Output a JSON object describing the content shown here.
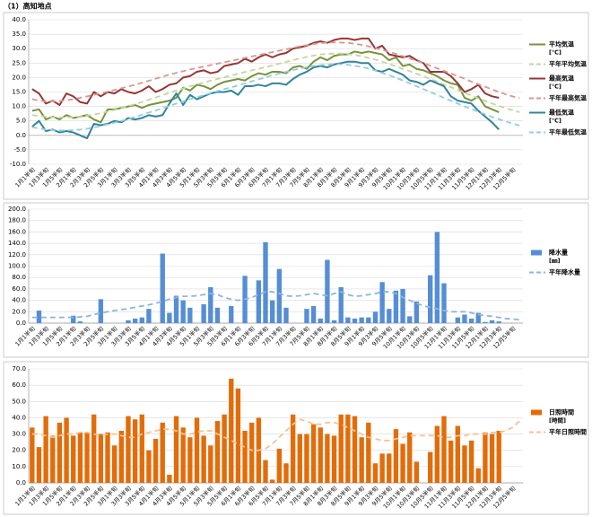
{
  "title": "（1）高知地点",
  "chart_data": [
    {
      "type": "line",
      "ylim": [
        -10,
        40
      ],
      "yticks": [
        {
          "value": -10,
          "label": "-10.0"
        },
        {
          "value": -5,
          "label": "-5.0"
        },
        {
          "value": 0,
          "label": "0.0"
        },
        {
          "value": 5,
          "label": "5.0"
        },
        {
          "value": 10,
          "label": "10.0"
        },
        {
          "value": 15,
          "label": "15.0"
        },
        {
          "value": 20,
          "label": "20.0"
        },
        {
          "value": 25,
          "label": "25.0"
        },
        {
          "value": 30,
          "label": "30.0"
        },
        {
          "value": 35,
          "label": "35.0"
        },
        {
          "value": 40,
          "label": "40.0"
        }
      ],
      "grid": true,
      "categories": [
        "1月1半旬",
        null,
        "1月3半旬",
        null,
        "1月5半旬",
        null,
        "2月1半旬",
        null,
        "2月3半旬",
        null,
        "2月5半旬",
        null,
        "3月1半旬",
        null,
        "3月3半旬",
        null,
        "3月5半旬",
        null,
        "4月1半旬",
        null,
        "4月3半旬",
        null,
        "4月5半旬",
        null,
        "5月1半旬",
        null,
        "5月3半旬",
        null,
        "5月5半旬",
        null,
        "6月1半旬",
        null,
        "6月3半旬",
        null,
        "6月5半旬",
        null,
        "7月1半旬",
        null,
        "7月3半旬",
        null,
        "7月5半旬",
        null,
        "8月1半旬",
        null,
        "8月3半旬",
        null,
        "8月5半旬",
        null,
        "9月1半旬",
        null,
        "9月3半旬",
        null,
        "9月5半旬",
        null,
        "10月1半旬",
        null,
        "10月3半旬",
        null,
        "10月5半旬",
        null,
        "11月1半旬",
        null,
        "11月3半旬",
        null,
        "11月5半旬",
        null,
        "12月1半旬",
        null,
        "12月3半旬",
        null,
        "12月5半旬",
        null
      ],
      "series": [
        {
          "name": "平均気温",
          "unit": "[℃]",
          "type": "line",
          "dashed": false,
          "color": "#77933c",
          "values": [
            8.5,
            9,
            5.5,
            6.5,
            5.5,
            7,
            6,
            6.5,
            7,
            5.5,
            4.5,
            9,
            9,
            9.5,
            10,
            10.5,
            9.5,
            10.5,
            11,
            11.5,
            12,
            13,
            16.5,
            15.5,
            17.5,
            17,
            16,
            17.5,
            18.5,
            19,
            19.5,
            19,
            20.5,
            21.5,
            21,
            22,
            22,
            21.5,
            23.5,
            24,
            23,
            25.5,
            27,
            26,
            27.5,
            28,
            28,
            29,
            28.5,
            29,
            28.5,
            28,
            26,
            27,
            24,
            24.5,
            23,
            22.5,
            21.5,
            20.5,
            19,
            18,
            17.5,
            13,
            12,
            13.5,
            10,
            9,
            8,
            null,
            null,
            null
          ]
        },
        {
          "name": "平年平均気温",
          "type": "line",
          "dashed": true,
          "color": "#c3d69b",
          "values": [
            7.0,
            6.7,
            6.5,
            6.3,
            6.2,
            6.2,
            6.3,
            6.5,
            6.8,
            7.2,
            7.7,
            8.2,
            8.8,
            9.4,
            10.1,
            10.8,
            11.5,
            12.3,
            13.1,
            13.9,
            14.7,
            15.5,
            16.2,
            17.0,
            17.6,
            18.3,
            18.9,
            19.5,
            20.1,
            20.7,
            21.3,
            21.9,
            22.5,
            23.0,
            23.6,
            24.2,
            24.8,
            25.4,
            26.0,
            26.6,
            27.1,
            27.6,
            28.0,
            28.2,
            28.3,
            28.3,
            28.1,
            27.8,
            27.4,
            26.8,
            26.2,
            25.5,
            24.7,
            23.9,
            23.0,
            22.2,
            21.3,
            20.4,
            19.5,
            18.6,
            17.6,
            16.7,
            15.7,
            14.7,
            13.8,
            12.8,
            11.9,
            11.0,
            10.2,
            9.4,
            8.7,
            8.0
          ]
        },
        {
          "name": "最高気温",
          "unit": "[℃]",
          "type": "line",
          "dashed": false,
          "color": "#953735",
          "values": [
            16,
            14.5,
            11,
            12,
            10.5,
            14.5,
            13.5,
            11.5,
            11,
            15,
            13.5,
            15,
            14.5,
            16,
            15,
            14.5,
            15.5,
            17,
            15,
            16,
            17.5,
            18,
            20,
            20.5,
            22,
            22.5,
            21.5,
            22,
            24,
            24.5,
            25,
            26.5,
            25.5,
            27,
            28,
            27,
            28,
            28.5,
            30,
            30.5,
            31,
            32,
            32.5,
            32,
            33,
            33.5,
            33.5,
            33,
            33.5,
            33.5,
            30,
            31,
            28,
            27.5,
            27,
            27.5,
            26,
            25,
            22,
            22,
            22,
            20.5,
            18,
            15,
            16,
            17.5,
            14.5,
            13.5,
            13,
            null,
            null,
            null
          ]
        },
        {
          "name": "平年最高気温",
          "type": "line",
          "dashed": true,
          "color": "#d99694",
          "values": [
            12.5,
            12,
            11.8,
            11.8,
            11.9,
            12.2,
            12.5,
            13,
            13.5,
            14,
            14.5,
            15.1,
            15.7,
            16.3,
            16.9,
            17.5,
            18.2,
            18.9,
            19.6,
            20.3,
            21,
            21.6,
            22.2,
            22.8,
            23.3,
            23.8,
            24.3,
            24.8,
            25.3,
            25.8,
            26.3,
            26.8,
            27.3,
            27.8,
            28.3,
            28.8,
            29.3,
            29.8,
            30.3,
            30.8,
            31.2,
            31.6,
            31.9,
            32.1,
            32.2,
            32.1,
            32,
            31.7,
            31.3,
            30.8,
            30.2,
            29.6,
            28.9,
            28.2,
            27.4,
            26.6,
            25.8,
            25,
            24.1,
            23.2,
            22.3,
            21.4,
            20.5,
            19.6,
            18.6,
            17.7,
            16.8,
            15.9,
            15,
            14.2,
            13.5,
            12.8
          ]
        },
        {
          "name": "最低気温",
          "unit": "[℃]",
          "type": "line",
          "dashed": false,
          "color": "#31849b",
          "values": [
            3,
            5,
            1.5,
            2,
            1,
            1.5,
            1,
            0,
            -1,
            4,
            3.5,
            4,
            5,
            4.5,
            6,
            5.5,
            6,
            7,
            6.5,
            7,
            11,
            14.5,
            10.5,
            14,
            12.5,
            13.5,
            14.5,
            15,
            15,
            15.5,
            14,
            17,
            17,
            17.5,
            17,
            18,
            18,
            17.5,
            19.5,
            21,
            22,
            23.5,
            24,
            23.5,
            24.5,
            25,
            25.5,
            25.5,
            25,
            25,
            22.5,
            22,
            23,
            22,
            21,
            19,
            18.5,
            17.5,
            19,
            18,
            17,
            13.5,
            12,
            11.5,
            11,
            8.5,
            6.5,
            4.5,
            2,
            null,
            null,
            null
          ]
        },
        {
          "name": "平年最低気温",
          "type": "line",
          "dashed": true,
          "color": "#93cddd",
          "values": [
            2.8,
            2.4,
            2,
            1.8,
            1.7,
            1.7,
            1.8,
            2,
            2.3,
            2.7,
            3.2,
            3.8,
            4.4,
            5,
            5.7,
            6.4,
            7.1,
            7.9,
            8.6,
            9.4,
            10.2,
            11,
            11.7,
            12.5,
            13.2,
            13.9,
            14.6,
            15.3,
            16,
            16.6,
            17.3,
            18,
            18.7,
            19.4,
            20.1,
            20.8,
            21.4,
            22,
            22.6,
            23.1,
            23.6,
            24,
            24.3,
            24.5,
            24.6,
            24.6,
            24.4,
            24.1,
            23.7,
            23.1,
            22.4,
            21.6,
            20.8,
            19.9,
            19,
            18,
            17,
            16,
            15,
            14,
            13,
            12,
            11,
            10,
            9.1,
            8.2,
            7.3,
            6.4,
            5.6,
            4.8,
            4.1,
            3.4
          ]
        }
      ]
    },
    {
      "type": "bar",
      "ylim": [
        0,
        200
      ],
      "yticks": [
        {
          "value": 0,
          "label": "0.0"
        },
        {
          "value": 20,
          "label": "20.0"
        },
        {
          "value": 40,
          "label": "40.0"
        },
        {
          "value": 60,
          "label": "60.0"
        },
        {
          "value": 80,
          "label": "80.0"
        },
        {
          "value": 100,
          "label": "100.0"
        },
        {
          "value": 120,
          "label": "120.0"
        },
        {
          "value": 140,
          "label": "140.0"
        },
        {
          "value": 160,
          "label": "160.0"
        },
        {
          "value": 180,
          "label": "180.0"
        },
        {
          "value": 200,
          "label": "200.0"
        }
      ],
      "grid": true,
      "categories": [
        "1月1半旬",
        null,
        "1月3半旬",
        null,
        "1月5半旬",
        null,
        "2月1半旬",
        null,
        "2月3半旬",
        null,
        "2月5半旬",
        null,
        "3月1半旬",
        null,
        "3月3半旬",
        null,
        "3月5半旬",
        null,
        "4月1半旬",
        null,
        "4月3半旬",
        null,
        "4月5半旬",
        null,
        "5月1半旬",
        null,
        "5月3半旬",
        null,
        "5月5半旬",
        null,
        "6月1半旬",
        null,
        "6月3半旬",
        null,
        "6月5半旬",
        null,
        "7月1半旬",
        null,
        "7月3半旬",
        null,
        "7月5半旬",
        null,
        "8月1半旬",
        null,
        "8月3半旬",
        null,
        "8月5半旬",
        null,
        "9月1半旬",
        null,
        "9月3半旬",
        null,
        "9月5半旬",
        null,
        "10月1半旬",
        null,
        "10月3半旬",
        null,
        "10月5半旬",
        null,
        "11月1半旬",
        null,
        "11月3半旬",
        null,
        "11月5半旬",
        null,
        "12月1半旬",
        null,
        "12月3半旬",
        null,
        "12月5半旬",
        null
      ],
      "series": [
        {
          "name": "降水量",
          "unit": "[㎜]",
          "type": "bar",
          "color": "#558ed5",
          "values": [
            0,
            22,
            0,
            0,
            0,
            0,
            13,
            3,
            0,
            0,
            42,
            0,
            0,
            0,
            5,
            8,
            10,
            25,
            0,
            122,
            18,
            48,
            40,
            27,
            0,
            33,
            63,
            27,
            0,
            30,
            0,
            83,
            0,
            75,
            142,
            40,
            95,
            27,
            0,
            0,
            25,
            30,
            8,
            111,
            5,
            63,
            10,
            8,
            10,
            10,
            20,
            72,
            25,
            57,
            60,
            12,
            38,
            0,
            84,
            160,
            70,
            0,
            10,
            15,
            8,
            18,
            2,
            5,
            3,
            null,
            null,
            null
          ]
        },
        {
          "name": "平年降水量",
          "type": "line",
          "dashed": true,
          "color": "#8db4e2",
          "values": [
            10,
            10,
            10,
            10,
            10,
            10,
            10,
            11,
            12,
            15,
            18,
            20,
            22,
            24,
            25,
            28,
            30,
            32,
            35,
            38,
            42,
            45,
            47,
            47,
            48,
            50,
            52,
            50,
            45,
            42,
            40,
            42,
            45,
            50,
            55,
            55,
            52,
            48,
            47,
            48,
            50,
            52,
            50,
            48,
            52,
            55,
            50,
            47,
            48,
            50,
            52,
            55,
            55,
            52,
            45,
            40,
            35,
            30,
            28,
            25,
            22,
            20,
            20,
            20,
            18,
            15,
            13,
            12,
            10,
            8,
            7,
            6
          ]
        }
      ]
    },
    {
      "type": "bar",
      "ylim": [
        0,
        70
      ],
      "yticks": [
        {
          "value": 0,
          "label": "0.0"
        },
        {
          "value": 10,
          "label": "10.0"
        },
        {
          "value": 20,
          "label": "20.0"
        },
        {
          "value": 30,
          "label": "30.0"
        },
        {
          "value": 40,
          "label": "40.0"
        },
        {
          "value": 50,
          "label": "50.0"
        },
        {
          "value": 60,
          "label": "60.0"
        },
        {
          "value": 70,
          "label": "70.0"
        }
      ],
      "grid": true,
      "categories": [
        "1月1半旬",
        null,
        "1月3半旬",
        null,
        "1月5半旬",
        null,
        "2月1半旬",
        null,
        "2月3半旬",
        null,
        "2月5半旬",
        null,
        "3月1半旬",
        null,
        "3月3半旬",
        null,
        "3月5半旬",
        null,
        "4月1半旬",
        null,
        "4月3半旬",
        null,
        "4月5半旬",
        null,
        "5月1半旬",
        null,
        "5月3半旬",
        null,
        "5月5半旬",
        null,
        "6月1半旬",
        null,
        "6月3半旬",
        null,
        "6月5半旬",
        null,
        "7月1半旬",
        null,
        "7月3半旬",
        null,
        "7月5半旬",
        null,
        "8月1半旬",
        null,
        "8月3半旬",
        null,
        "8月5半旬",
        null,
        "9月1半旬",
        null,
        "9月3半旬",
        null,
        "9月5半旬",
        null,
        "10月1半旬",
        null,
        "10月3半旬",
        null,
        "10月5半旬",
        null,
        "11月1半旬",
        null,
        "11月3半旬",
        null,
        "11月5半旬",
        null,
        "12月1半旬",
        null,
        "12月3半旬",
        null,
        "12月5半旬",
        null
      ],
      "series": [
        {
          "name": "日照時間",
          "unit": "[時間]",
          "type": "bar",
          "color": "#e36c09",
          "values": [
            34,
            22,
            41,
            29,
            37,
            40,
            29,
            31,
            31,
            42,
            30,
            31,
            23,
            32,
            41,
            39,
            42,
            20,
            27,
            37,
            5,
            41,
            34,
            28,
            40,
            29,
            23,
            38,
            42,
            64,
            58,
            32,
            37,
            40,
            14,
            2,
            21,
            12,
            42,
            30,
            30,
            36,
            34,
            30,
            29,
            42,
            42,
            41,
            28,
            37,
            12,
            18,
            18,
            33,
            24,
            31,
            13,
            0,
            19,
            35,
            41,
            26,
            35,
            23,
            26,
            9,
            31,
            30,
            32,
            null,
            null,
            null
          ]
        },
        {
          "name": "平年日照時間",
          "type": "line",
          "dashed": true,
          "color": "#fac090",
          "values": [
            30,
            30,
            29,
            28,
            29,
            30,
            30,
            31,
            31,
            30,
            29,
            30,
            30,
            29,
            28,
            28,
            30,
            31,
            32,
            33,
            33,
            32,
            30,
            30,
            31,
            32,
            32,
            30,
            28,
            26,
            24,
            22,
            20,
            20,
            21,
            24,
            28,
            32,
            36,
            39,
            38,
            36,
            36,
            37,
            37,
            36,
            34,
            32,
            30,
            28,
            27,
            26,
            26,
            27,
            28,
            29,
            29,
            29,
            29,
            29,
            28,
            28,
            29,
            29,
            30,
            30,
            30,
            31,
            31,
            32,
            34,
            38
          ]
        }
      ]
    }
  ]
}
